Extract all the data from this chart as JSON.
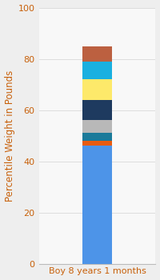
{
  "categories": [
    "Boy 8 years 1 months"
  ],
  "segments": [
    {
      "label": "base_blue",
      "value": 46,
      "color": "#4d94e8"
    },
    {
      "label": "orange",
      "value": 2,
      "color": "#e85c10"
    },
    {
      "label": "teal",
      "value": 3,
      "color": "#1a7a9a"
    },
    {
      "label": "gray",
      "value": 5,
      "color": "#b8b8b8"
    },
    {
      "label": "dark_navy",
      "value": 8,
      "color": "#1e3a5f"
    },
    {
      "label": "yellow",
      "value": 8,
      "color": "#fde96a"
    },
    {
      "label": "light_blue",
      "value": 7,
      "color": "#1ab0e0"
    },
    {
      "label": "brown",
      "value": 6,
      "color": "#bc6040"
    }
  ],
  "ylabel": "Percentile Weight in Pounds",
  "ylim": [
    0,
    100
  ],
  "yticks": [
    0,
    20,
    40,
    60,
    80,
    100
  ],
  "background_color": "#eeeeee",
  "plot_bg_color": "#f8f8f8",
  "xlabel_color": "#c8600a",
  "ylabel_color": "#c8600a",
  "tick_color": "#c8600a",
  "ylabel_fontsize": 8.5,
  "xlabel_fontsize": 8,
  "ytick_fontsize": 8,
  "bar_width": 0.3
}
